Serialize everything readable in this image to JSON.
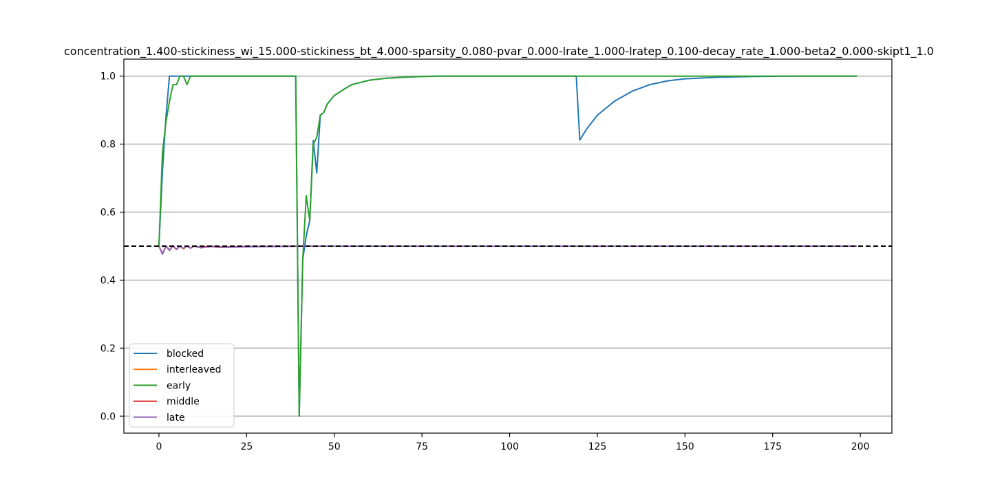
{
  "chart_data": {
    "type": "line",
    "title": "concentration_1.400-stickiness_wi_15.000-stickiness_bt_4.000-sparsity_0.080-pvar_0.000-lrate_1.000-lratep_0.100-decay_rate_1.000-beta2_0.000-skipt1_1.0",
    "xlabel": "",
    "ylabel": "",
    "xlim": [
      -10,
      209
    ],
    "ylim": [
      -0.05,
      1.05
    ],
    "xticks": [
      0,
      25,
      50,
      75,
      100,
      125,
      150,
      175,
      200
    ],
    "yticks": [
      0.0,
      0.2,
      0.4,
      0.6,
      0.8,
      1.0
    ],
    "xtick_labels": [
      "0",
      "25",
      "50",
      "75",
      "100",
      "125",
      "150",
      "175",
      "200"
    ],
    "ytick_labels": [
      "0.0",
      "0.2",
      "0.4",
      "0.6",
      "0.8",
      "1.0"
    ],
    "grid": "horizontal",
    "legend_position": "lower-left",
    "reference_line": {
      "y": 0.5,
      "style": "dashed",
      "color": "#000000"
    },
    "series": [
      {
        "name": "blocked",
        "color": "#1f77b4",
        "points": [
          [
            0,
            0.5
          ],
          [
            1,
            0.72
          ],
          [
            2,
            0.88
          ],
          [
            3,
            1.0
          ],
          [
            39,
            1.0
          ],
          [
            40,
            0.0
          ],
          [
            41,
            0.46
          ],
          [
            42,
            0.53
          ],
          [
            43,
            0.575
          ],
          [
            44,
            0.81
          ],
          [
            45,
            0.715
          ],
          [
            46,
            0.885
          ],
          [
            47,
            0.893
          ],
          [
            48,
            0.918
          ],
          [
            50,
            0.943
          ],
          [
            53,
            0.963
          ],
          [
            55,
            0.975
          ],
          [
            60,
            0.988
          ],
          [
            65,
            0.994
          ],
          [
            70,
            0.997
          ],
          [
            75,
            0.999
          ],
          [
            80,
            1.0
          ],
          [
            119,
            1.0
          ],
          [
            120,
            0.812
          ],
          [
            122,
            0.845
          ],
          [
            125,
            0.885
          ],
          [
            130,
            0.927
          ],
          [
            135,
            0.956
          ],
          [
            140,
            0.975
          ],
          [
            145,
            0.986
          ],
          [
            150,
            0.992
          ],
          [
            160,
            0.997
          ],
          [
            170,
            0.999
          ],
          [
            180,
            1.0
          ],
          [
            199,
            1.0
          ]
        ]
      },
      {
        "name": "interleaved",
        "color": "#ff7f0e",
        "points": [
          [
            0,
            0.5
          ],
          [
            1,
            0.477
          ],
          [
            2,
            0.5
          ],
          [
            3,
            0.488
          ],
          [
            4,
            0.5
          ],
          [
            5,
            0.49
          ],
          [
            6,
            0.5
          ],
          [
            7,
            0.492
          ],
          [
            8,
            0.5
          ],
          [
            9,
            0.494
          ],
          [
            10,
            0.5
          ],
          [
            12,
            0.495
          ],
          [
            14,
            0.5
          ],
          [
            17,
            0.496
          ],
          [
            20,
            0.498
          ],
          [
            30,
            0.499
          ],
          [
            40,
            0.5
          ],
          [
            199,
            0.5
          ]
        ]
      },
      {
        "name": "early",
        "color": "#2ca02c",
        "points": [
          [
            0,
            0.5
          ],
          [
            1,
            0.775
          ],
          [
            2,
            0.865
          ],
          [
            3,
            0.925
          ],
          [
            4,
            0.975
          ],
          [
            5,
            0.975
          ],
          [
            6,
            1.0
          ],
          [
            7,
            1.0
          ],
          [
            8,
            0.975
          ],
          [
            9,
            1.0
          ],
          [
            39,
            1.0
          ],
          [
            40,
            0.0
          ],
          [
            41,
            0.46
          ],
          [
            42,
            0.648
          ],
          [
            43,
            0.575
          ],
          [
            44,
            0.8
          ],
          [
            45,
            0.82
          ],
          [
            46,
            0.885
          ],
          [
            47,
            0.893
          ],
          [
            48,
            0.918
          ],
          [
            50,
            0.943
          ],
          [
            53,
            0.963
          ],
          [
            55,
            0.975
          ],
          [
            60,
            0.988
          ],
          [
            65,
            0.994
          ],
          [
            70,
            0.997
          ],
          [
            75,
            0.999
          ],
          [
            80,
            1.0
          ],
          [
            199,
            1.0
          ]
        ]
      },
      {
        "name": "middle",
        "color": "#d62728",
        "points": [
          [
            0,
            0.5
          ],
          [
            1,
            0.478
          ],
          [
            2,
            0.5
          ],
          [
            3,
            0.489
          ],
          [
            4,
            0.5
          ],
          [
            5,
            0.491
          ],
          [
            6,
            0.5
          ],
          [
            7,
            0.493
          ],
          [
            8,
            0.5
          ],
          [
            9,
            0.495
          ],
          [
            10,
            0.5
          ],
          [
            12,
            0.496
          ],
          [
            15,
            0.5
          ],
          [
            18,
            0.497
          ],
          [
            25,
            0.499
          ],
          [
            40,
            0.5
          ],
          [
            199,
            0.5
          ]
        ]
      },
      {
        "name": "late",
        "color": "#9467bd",
        "points": [
          [
            0,
            0.5
          ],
          [
            1,
            0.476
          ],
          [
            2,
            0.5
          ],
          [
            3,
            0.487
          ],
          [
            4,
            0.502
          ],
          [
            5,
            0.49
          ],
          [
            6,
            0.5
          ],
          [
            7,
            0.493
          ],
          [
            8,
            0.5
          ],
          [
            9,
            0.494
          ],
          [
            10,
            0.5
          ],
          [
            12,
            0.495
          ],
          [
            15,
            0.499
          ],
          [
            18,
            0.496
          ],
          [
            25,
            0.498
          ],
          [
            35,
            0.499
          ],
          [
            40,
            0.5
          ],
          [
            199,
            0.5
          ]
        ]
      }
    ]
  }
}
